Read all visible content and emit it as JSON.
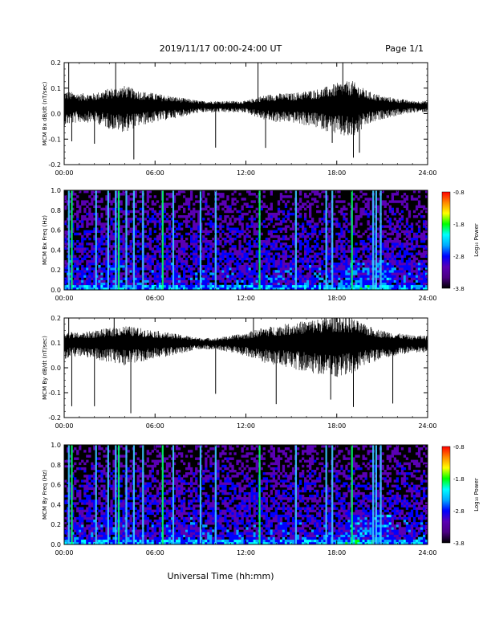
{
  "header": {
    "title": "2019/11/17  00:00-24:00 UT",
    "page": "Page 1/1"
  },
  "x_axis": {
    "label": "Universal Time (hh:mm)",
    "ticks": [
      "00:00",
      "06:00",
      "12:00",
      "18:00",
      "24:00"
    ],
    "range_hours": [
      0,
      24
    ]
  },
  "colors": {
    "background": "#ffffff",
    "trace": "#000000",
    "spectrogram_background": "#000000",
    "colormap": [
      "#000000",
      "#4b0082",
      "#5a00b4",
      "#0000ff",
      "#00a8ff",
      "#00ffff",
      "#00ff00",
      "#ffff00",
      "#ff8800",
      "#ff0000"
    ]
  },
  "chart_data": [
    {
      "type": "line",
      "ylabel": "MCM Bx dB/dt (nT/sec)",
      "ylim": [
        -0.2,
        0.2
      ],
      "yticks": [
        "-0.2",
        "-0.1",
        "0.0",
        "0.1",
        "0.2"
      ],
      "baseline": 0.03,
      "x": [
        0,
        1,
        2,
        3,
        4,
        5,
        6,
        7,
        8,
        9,
        10,
        11,
        12,
        13,
        14,
        15,
        16,
        17,
        18,
        19,
        20,
        21,
        22,
        23,
        24
      ],
      "noise_envelope": [
        0.06,
        0.05,
        0.05,
        0.07,
        0.08,
        0.06,
        0.05,
        0.04,
        0.03,
        0.02,
        0.02,
        0.02,
        0.02,
        0.04,
        0.05,
        0.05,
        0.06,
        0.07,
        0.09,
        0.1,
        0.06,
        0.04,
        0.03,
        0.02,
        0.02
      ],
      "spikes_hours": [
        0.3,
        0.5,
        2.0,
        3.4,
        4.6,
        10.0,
        12.8,
        13.3,
        17.7,
        18.4,
        19.1,
        19.5
      ]
    },
    {
      "type": "heatmap",
      "ylabel": "MCM Bx Freq (Hz)",
      "ylim": [
        0.0,
        1.0
      ],
      "yticks": [
        "0.0",
        "0.2",
        "0.4",
        "0.6",
        "0.8",
        "1.0"
      ],
      "colorbar_label": "Log₁₀ Power",
      "colorbar_ticks": [
        "-0.8",
        "-1.8",
        "-2.8",
        "-3.8"
      ],
      "colorbar_range": [
        -3.8,
        -0.8
      ],
      "bright_lines_hours": [
        0.3,
        0.5,
        2.1,
        2.9,
        3.4,
        3.6,
        4.1,
        4.6,
        5.2,
        6.5,
        7.2,
        9.0,
        10.0,
        12.9,
        15.3,
        17.3,
        17.7,
        19.0,
        20.4,
        20.6,
        20.9
      ]
    },
    {
      "type": "line",
      "ylabel": "MCM By dB/dt (nT/sec)",
      "ylim": [
        -0.2,
        0.2
      ],
      "yticks": [
        "-0.2",
        "-0.1",
        "0.0",
        "0.1",
        "0.2"
      ],
      "baseline": 0.1,
      "x": [
        0,
        1,
        2,
        3,
        4,
        5,
        6,
        7,
        8,
        9,
        10,
        11,
        12,
        13,
        14,
        15,
        16,
        17,
        18,
        19,
        20,
        21,
        22,
        23,
        24
      ],
      "noise_envelope": [
        0.05,
        0.04,
        0.05,
        0.06,
        0.07,
        0.06,
        0.05,
        0.04,
        0.03,
        0.02,
        0.02,
        0.03,
        0.04,
        0.06,
        0.07,
        0.08,
        0.09,
        0.1,
        0.11,
        0.1,
        0.07,
        0.05,
        0.04,
        0.03,
        0.03
      ],
      "spikes_hours": [
        0.3,
        0.5,
        2.0,
        3.3,
        4.4,
        10.0,
        12.5,
        14.0,
        17.6,
        18.2,
        19.1,
        21.7
      ]
    },
    {
      "type": "heatmap",
      "ylabel": "MCM By Freq (Hz)",
      "ylim": [
        0.0,
        1.0
      ],
      "yticks": [
        "0.0",
        "0.2",
        "0.4",
        "0.6",
        "0.8",
        "1.0"
      ],
      "colorbar_label": "Log₁₀ Power",
      "colorbar_ticks": [
        "-0.8",
        "-1.8",
        "-2.8",
        "-3.8"
      ],
      "colorbar_range": [
        -3.8,
        -0.8
      ],
      "bright_lines_hours": [
        0.3,
        0.5,
        2.1,
        2.9,
        3.4,
        3.6,
        4.1,
        4.6,
        5.2,
        6.5,
        7.2,
        9.0,
        10.0,
        12.9,
        15.3,
        17.3,
        17.7,
        19.0,
        20.4,
        20.6,
        20.9
      ]
    }
  ]
}
